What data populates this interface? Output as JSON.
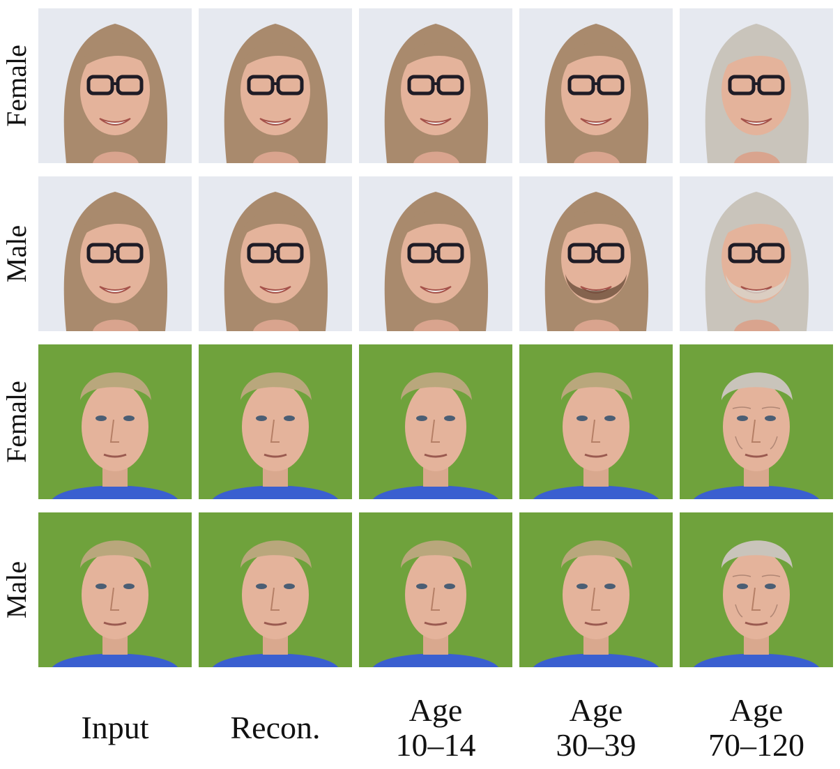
{
  "rows": [
    {
      "label": "Female",
      "subject": "woman-glasses"
    },
    {
      "label": "Male",
      "subject": "woman-glasses"
    },
    {
      "label": "Female",
      "subject": "man-blond"
    },
    {
      "label": "Male",
      "subject": "man-blond"
    }
  ],
  "columns": [
    {
      "line1": "Input",
      "line2": ""
    },
    {
      "line1": "Recon.",
      "line2": ""
    },
    {
      "line1": "Age",
      "line2": "10–14"
    },
    {
      "line1": "Age",
      "line2": "30–39"
    },
    {
      "line1": "Age",
      "line2": "70–120"
    }
  ],
  "colors": {
    "backdrop_light": "#e6e9f0",
    "backdrop_green": "#6fa23c",
    "jersey_blue": "#3a5fd0",
    "hair_light_brown": "#a98a6d",
    "hair_blond": "#b9a77c",
    "hair_gray": "#c9c4bb",
    "skin": "#e4b39b",
    "glasses": "#1f1c26"
  }
}
